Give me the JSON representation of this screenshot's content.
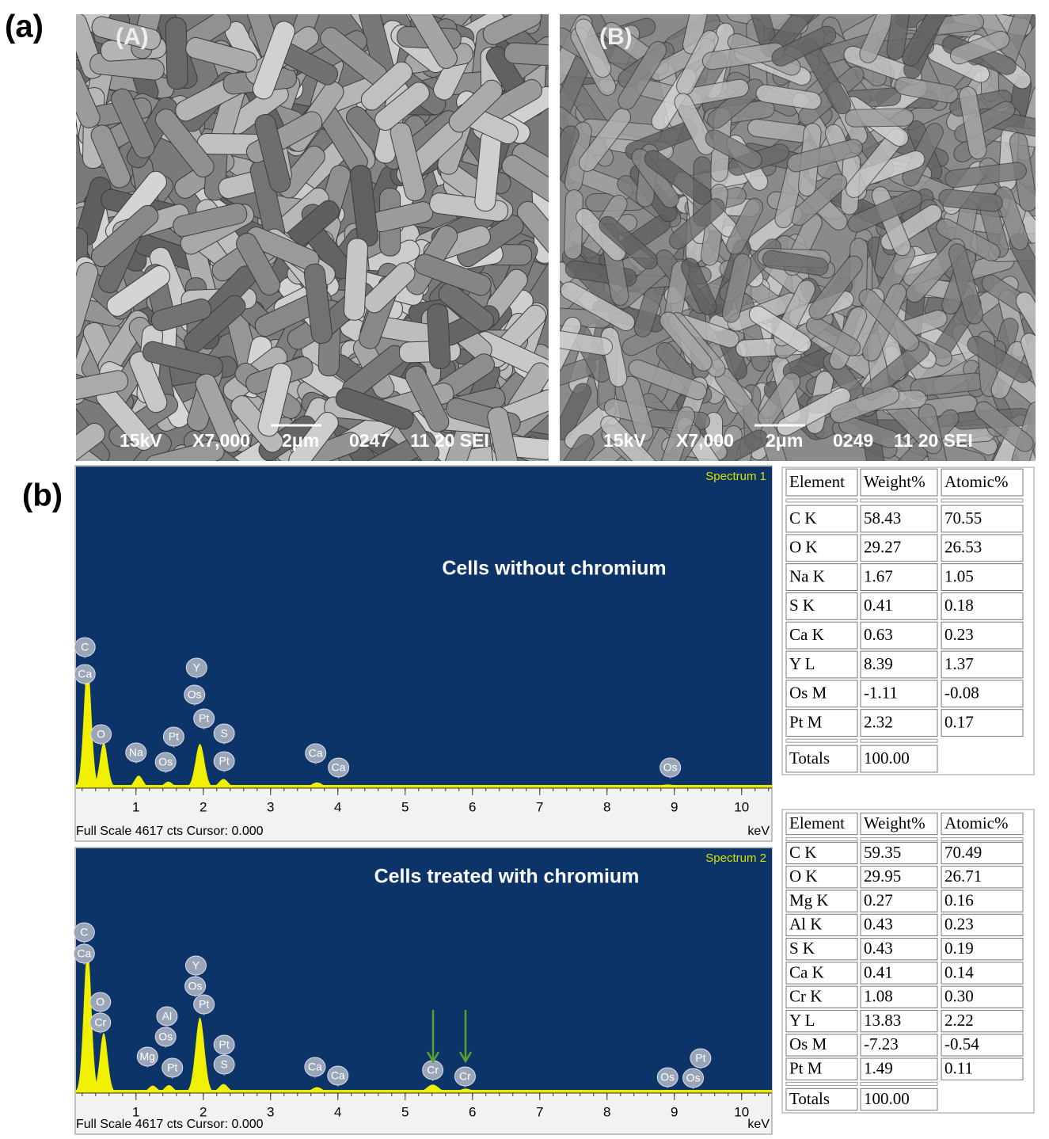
{
  "panel_labels": [
    "(a)",
    "(b)"
  ],
  "sem_images": [
    {
      "label": "(A)",
      "info": [
        "15kV",
        "X7,000",
        "2μm",
        "0247",
        "11 20 SEI"
      ]
    },
    {
      "label": "(B)",
      "info": [
        "15kV",
        "X7,000",
        "2μm",
        "0249",
        "11 20 SEI"
      ]
    }
  ],
  "spectra": [
    {
      "title": "Spectrum 1",
      "annotation": "Cells without chromium",
      "xlim": [
        0.12,
        10.45
      ],
      "ylim": [
        0,
        4617
      ],
      "xticks": [
        1,
        2,
        3,
        4,
        5,
        6,
        7,
        8,
        9,
        10
      ],
      "footer": "Full Scale 4617 cts Cursor: 0.000",
      "unit": "keV",
      "peaks": [
        {
          "x": 0.28,
          "height": 1800
        },
        {
          "x": 0.52,
          "height": 640
        },
        {
          "x": 1.04,
          "height": 150
        },
        {
          "x": 1.48,
          "height": 60
        },
        {
          "x": 1.95,
          "height": 620
        },
        {
          "x": 2.3,
          "height": 100
        },
        {
          "x": 3.69,
          "height": 50
        },
        {
          "x": 8.9,
          "height": 20
        }
      ],
      "markers": [
        {
          "label": "C",
          "x": 0.24
        },
        {
          "label": "Ca",
          "x": 0.24
        },
        {
          "label": "O",
          "x": 0.48
        },
        {
          "label": "Na",
          "x": 1.0
        },
        {
          "label": "Os",
          "x": 1.44
        },
        {
          "label": "Pt",
          "x": 1.56
        },
        {
          "label": "Y",
          "x": 1.9
        },
        {
          "label": "Os",
          "x": 1.87
        },
        {
          "label": "Pt",
          "x": 2.01
        },
        {
          "label": "S",
          "x": 2.31
        },
        {
          "label": "Pt",
          "x": 2.31
        },
        {
          "label": "Ca",
          "x": 3.67
        },
        {
          "label": "Ca",
          "x": 4.01
        },
        {
          "label": "Os",
          "x": 8.94
        }
      ]
    },
    {
      "title": "Spectrum 2",
      "annotation": "Cells  treated  with chromium",
      "xlim": [
        0.12,
        10.45
      ],
      "ylim": [
        0,
        4617
      ],
      "xticks": [
        1,
        2,
        3,
        4,
        5,
        6,
        7,
        8,
        9,
        10
      ],
      "footer": "Full Scale 4617 cts Cursor: 0.000",
      "unit": "keV",
      "peaks": [
        {
          "x": 0.28,
          "height": 2800
        },
        {
          "x": 0.52,
          "height": 1135
        },
        {
          "x": 1.25,
          "height": 100
        },
        {
          "x": 1.49,
          "height": 110
        },
        {
          "x": 1.95,
          "height": 1440
        },
        {
          "x": 2.3,
          "height": 130
        },
        {
          "x": 3.69,
          "height": 70
        },
        {
          "x": 5.41,
          "height": 120
        },
        {
          "x": 5.9,
          "height": 40
        },
        {
          "x": 8.9,
          "height": 15
        }
      ],
      "markers": [
        {
          "label": "C",
          "x": 0.23
        },
        {
          "label": "Ca",
          "x": 0.23
        },
        {
          "label": "O",
          "x": 0.47
        },
        {
          "label": "Cr",
          "x": 0.47
        },
        {
          "label": "Al",
          "x": 1.46
        },
        {
          "label": "Os",
          "x": 1.44
        },
        {
          "label": "Mg",
          "x": 1.17
        },
        {
          "label": "Pt",
          "x": 1.54
        },
        {
          "label": "Y",
          "x": 1.89
        },
        {
          "label": "Os",
          "x": 1.88
        },
        {
          "label": "Pt",
          "x": 2.01
        },
        {
          "label": "Pt",
          "x": 2.31
        },
        {
          "label": "S",
          "x": 2.31
        },
        {
          "label": "Ca",
          "x": 3.66
        },
        {
          "label": "Ca",
          "x": 4.0
        },
        {
          "label": "Cr",
          "x": 5.41
        },
        {
          "label": "Cr",
          "x": 5.89
        },
        {
          "label": "Os",
          "x": 8.9
        },
        {
          "label": "Os",
          "x": 9.28
        },
        {
          "label": "Pt",
          "x": 9.39
        }
      ]
    }
  ],
  "tables": [
    {
      "header": [
        "Element",
        "Weight%",
        "Atomic%"
      ],
      "rows": [
        [
          "C K",
          "58.43",
          "70.55"
        ],
        [
          "O K",
          "29.27",
          "26.53"
        ],
        [
          "Na K",
          "1.67",
          "1.05"
        ],
        [
          "S K",
          "0.41",
          "0.18"
        ],
        [
          "Ca K",
          "0.63",
          "0.23"
        ],
        [
          "Y L",
          "8.39",
          "1.37"
        ],
        [
          "Os M",
          "-1.11",
          "-0.08"
        ],
        [
          "Pt M",
          "2.32",
          "0.17"
        ]
      ],
      "totals": [
        "Totals",
        "100.00"
      ]
    },
    {
      "header": [
        "Element",
        "Weight%",
        "Atomic%"
      ],
      "rows": [
        [
          "C K",
          "59.35",
          "70.49"
        ],
        [
          "O K",
          "29.95",
          "26.71"
        ],
        [
          "Mg K",
          "0.27",
          "0.16"
        ],
        [
          "Al K",
          "0.43",
          "0.23"
        ],
        [
          "S K",
          "0.43",
          "0.19"
        ],
        [
          "Ca K",
          "0.41",
          "0.14"
        ],
        [
          "Cr K",
          "1.08",
          "0.30"
        ],
        [
          "Y L",
          "13.83",
          "2.22"
        ],
        [
          "Os M",
          "-7.23",
          "-0.54"
        ],
        [
          "Pt M",
          "1.49",
          "0.11"
        ]
      ],
      "totals": [
        "Totals",
        "100.00"
      ]
    }
  ]
}
